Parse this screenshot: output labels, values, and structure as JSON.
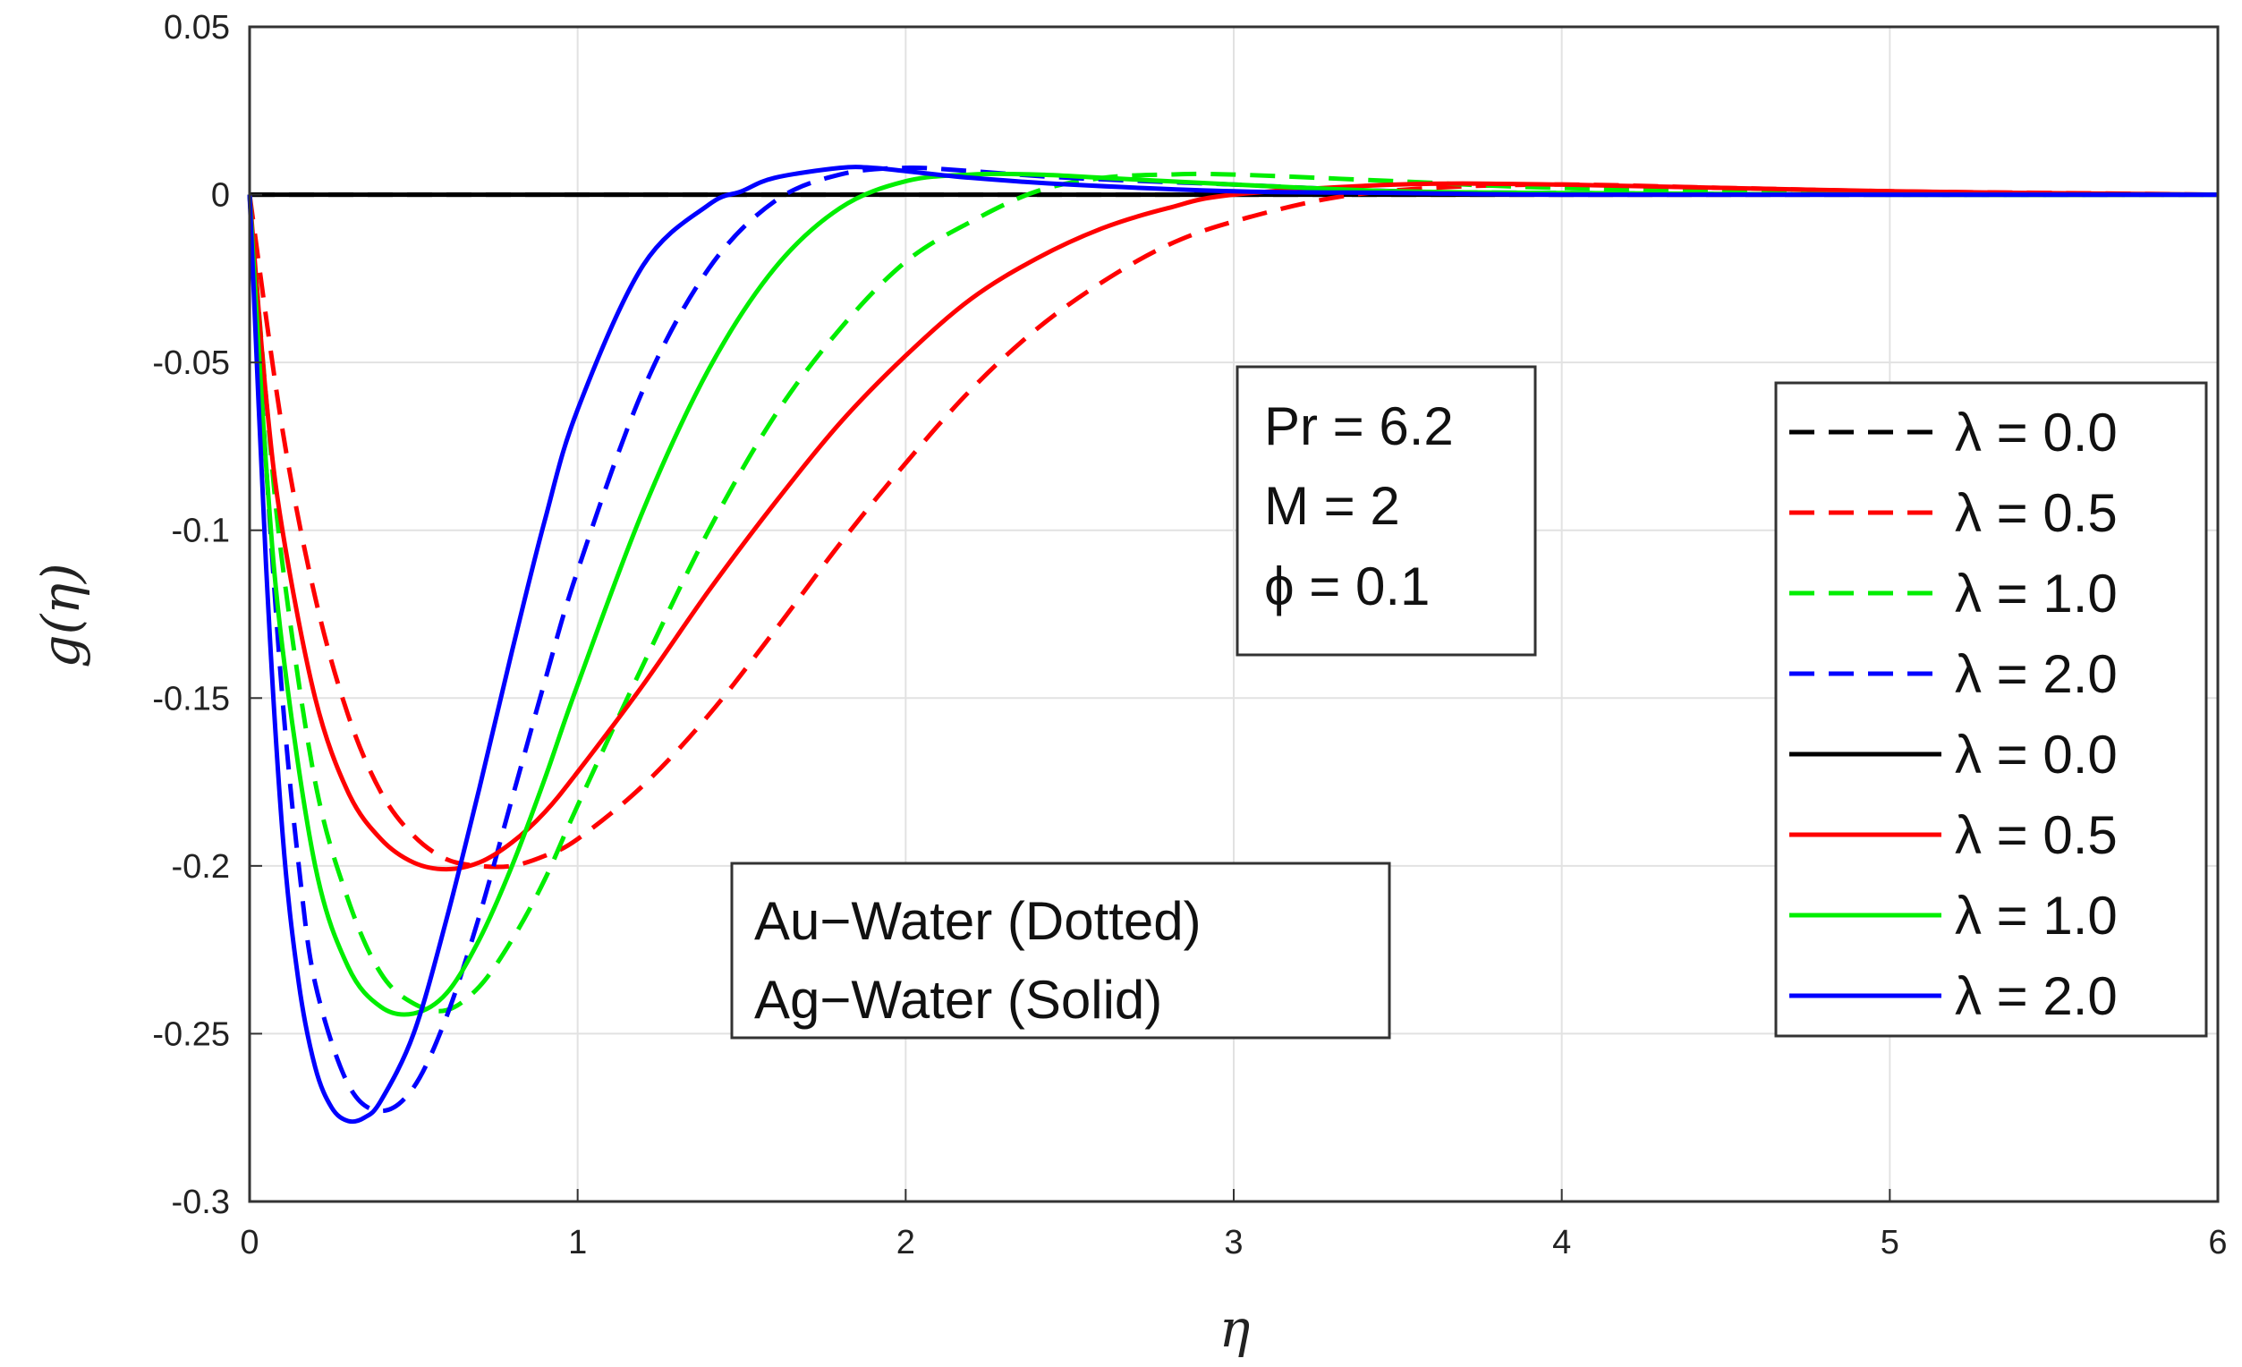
{
  "chart_data": {
    "type": "line",
    "xlabel": "η",
    "ylabel": "g(η)",
    "xlim": [
      0,
      6
    ],
    "ylim": [
      -0.3,
      0.05
    ],
    "xticks": [
      "0",
      "1",
      "2",
      "3",
      "4",
      "5",
      "6"
    ],
    "yticks": [
      "0.05",
      "0",
      "-0.05",
      "-0.1",
      "-0.15",
      "-0.2",
      "-0.25",
      "-0.3"
    ],
    "grid": true,
    "legend_position": "right",
    "params": [
      "Pr = 6.2",
      "M = 2",
      "ϕ = 0.1"
    ],
    "annotations": [
      "Au−Water (Dotted)",
      "Ag−Water (Solid)"
    ],
    "series": [
      {
        "name": "λ = 0.0",
        "color": "#000000",
        "dash": "dashed",
        "x": [
          0,
          6
        ],
        "y": [
          0,
          0
        ]
      },
      {
        "name": "λ = 0.5",
        "color": "#ff0000",
        "dash": "dashed",
        "x": [
          0,
          0.1,
          0.2,
          0.3,
          0.4,
          0.5,
          0.6,
          0.7,
          0.8,
          0.9,
          1.0,
          1.2,
          1.4,
          1.6,
          1.8,
          2.0,
          2.2,
          2.4,
          2.6,
          2.8,
          3.0,
          3.3,
          3.6,
          4.0,
          4.5,
          5.0,
          5.5,
          6.0
        ],
        "y": [
          0,
          -0.07,
          -0.12,
          -0.155,
          -0.178,
          -0.191,
          -0.198,
          -0.2,
          -0.2,
          -0.197,
          -0.192,
          -0.176,
          -0.155,
          -0.13,
          -0.104,
          -0.08,
          -0.058,
          -0.04,
          -0.026,
          -0.015,
          -0.008,
          -0.001,
          0.002,
          0.003,
          0.002,
          0.001,
          0.0005,
          0
        ]
      },
      {
        "name": "λ = 1.0",
        "color": "#00ee00",
        "dash": "dashed",
        "x": [
          0,
          0.05,
          0.1,
          0.2,
          0.3,
          0.4,
          0.5,
          0.6,
          0.7,
          0.8,
          0.9,
          1.0,
          1.2,
          1.4,
          1.6,
          1.8,
          2.0,
          2.2,
          2.4,
          2.6,
          2.8,
          3.0,
          3.5,
          4.0,
          5.0,
          6.0
        ],
        "y": [
          0,
          -0.06,
          -0.11,
          -0.175,
          -0.21,
          -0.232,
          -0.241,
          -0.243,
          -0.236,
          -0.222,
          -0.204,
          -0.182,
          -0.14,
          -0.1,
          -0.066,
          -0.04,
          -0.02,
          -0.008,
          0.001,
          0.005,
          0.006,
          0.006,
          0.004,
          0.002,
          0.0005,
          0
        ]
      },
      {
        "name": "λ = 2.0",
        "color": "#0000ff",
        "dash": "dashed",
        "x": [
          0,
          0.05,
          0.1,
          0.15,
          0.2,
          0.3,
          0.4,
          0.5,
          0.6,
          0.7,
          0.8,
          0.9,
          1.0,
          1.2,
          1.4,
          1.6,
          1.8,
          2.0,
          2.2,
          2.5,
          3.0,
          3.5,
          4.0,
          5.0,
          6.0
        ],
        "y": [
          0,
          -0.08,
          -0.15,
          -0.2,
          -0.235,
          -0.265,
          -0.273,
          -0.266,
          -0.245,
          -0.215,
          -0.18,
          -0.145,
          -0.112,
          -0.058,
          -0.022,
          -0.002,
          0.006,
          0.008,
          0.007,
          0.005,
          0.003,
          0.001,
          0.0005,
          0,
          0
        ]
      },
      {
        "name": "λ = 0.0",
        "color": "#000000",
        "dash": "solid",
        "x": [
          0,
          6
        ],
        "y": [
          0,
          0
        ]
      },
      {
        "name": "λ = 0.5",
        "color": "#ff0000",
        "dash": "solid",
        "x": [
          0,
          0.05,
          0.1,
          0.2,
          0.3,
          0.4,
          0.5,
          0.6,
          0.7,
          0.8,
          0.9,
          1.0,
          1.2,
          1.4,
          1.6,
          1.8,
          2.0,
          2.2,
          2.4,
          2.6,
          2.8,
          3.0,
          3.5,
          4.0,
          5.0,
          6.0
        ],
        "y": [
          0,
          -0.06,
          -0.1,
          -0.15,
          -0.178,
          -0.192,
          -0.199,
          -0.201,
          -0.199,
          -0.193,
          -0.184,
          -0.172,
          -0.146,
          -0.118,
          -0.092,
          -0.068,
          -0.048,
          -0.031,
          -0.019,
          -0.01,
          -0.004,
          0,
          0.003,
          0.003,
          0.001,
          0
        ]
      },
      {
        "name": "λ = 1.0",
        "color": "#00ee00",
        "dash": "solid",
        "x": [
          0,
          0.05,
          0.1,
          0.2,
          0.3,
          0.4,
          0.5,
          0.6,
          0.7,
          0.8,
          0.9,
          1.0,
          1.2,
          1.4,
          1.6,
          1.8,
          2.0,
          2.2,
          2.4,
          2.6,
          3.0,
          3.5,
          4.0,
          5.0,
          6.0
        ],
        "y": [
          0,
          -0.08,
          -0.135,
          -0.2,
          -0.23,
          -0.242,
          -0.244,
          -0.238,
          -0.222,
          -0.2,
          -0.174,
          -0.146,
          -0.094,
          -0.052,
          -0.022,
          -0.004,
          0.004,
          0.006,
          0.006,
          0.005,
          0.003,
          0.001,
          0.0005,
          0,
          0
        ]
      },
      {
        "name": "λ = 2.0",
        "color": "#0000ff",
        "dash": "solid",
        "x": [
          0,
          0.05,
          0.1,
          0.15,
          0.2,
          0.25,
          0.3,
          0.35,
          0.4,
          0.5,
          0.6,
          0.7,
          0.8,
          0.9,
          1.0,
          1.2,
          1.4,
          1.5,
          1.6,
          1.8,
          1.9,
          2.0,
          2.2,
          2.5,
          3.0,
          3.5,
          4.0,
          5.0,
          6.0
        ],
        "y": [
          0,
          -0.11,
          -0.19,
          -0.235,
          -0.26,
          -0.272,
          -0.276,
          -0.275,
          -0.27,
          -0.25,
          -0.216,
          -0.177,
          -0.136,
          -0.097,
          -0.064,
          -0.021,
          -0.003,
          0.001,
          0.005,
          0.008,
          0.008,
          0.007,
          0.005,
          0.003,
          0.001,
          0.0005,
          0,
          0,
          0
        ]
      }
    ]
  }
}
